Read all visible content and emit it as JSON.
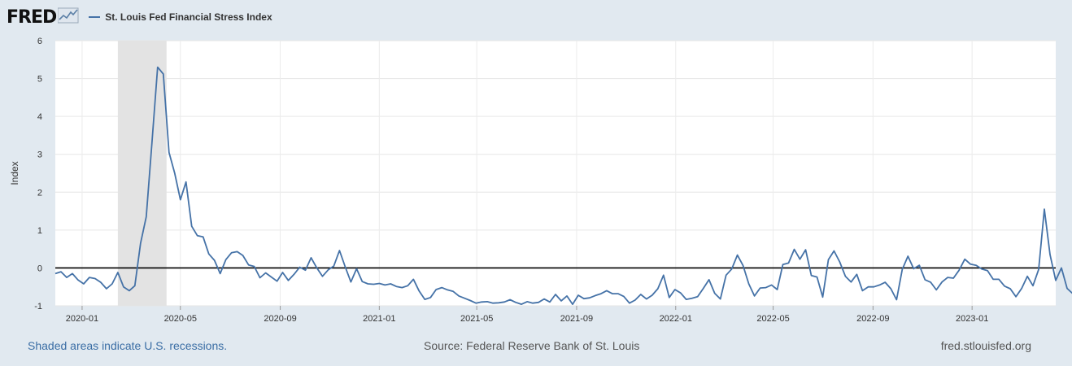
{
  "header": {
    "logo_text": "FRED",
    "logo_icon": "line-chart-icon",
    "legend_label": "St. Louis Fed Financial Stress Index"
  },
  "footer": {
    "recession_note": "Shaded areas indicate U.S. recessions.",
    "source": "Source: Federal Reserve Bank of St. Louis",
    "site": "fred.stlouisfed.org"
  },
  "colors": {
    "series": "#4572a7",
    "recession": "#e3e3e3",
    "background": "#e1e9f0",
    "plot": "#ffffff",
    "zero_line": "#000000"
  },
  "chart_data": {
    "type": "line",
    "title": "St. Louis Fed Financial Stress Index",
    "ylabel": "Index",
    "xlabel": "",
    "ylim": [
      -1,
      6
    ],
    "yticks": [
      -1,
      0,
      1,
      2,
      3,
      4,
      5,
      6
    ],
    "xlim": [
      "2019-11-29",
      "2023-04-14"
    ],
    "xticks": [
      "2020-01",
      "2020-05",
      "2020-09",
      "2021-01",
      "2021-05",
      "2021-09",
      "2022-01",
      "2022-05",
      "2022-09",
      "2023-01"
    ],
    "grid": true,
    "recessions": [
      {
        "start": "2020-02-14",
        "end": "2020-04-14"
      }
    ],
    "reference_line": 0,
    "series": [
      {
        "name": "St. Louis Fed Financial Stress Index",
        "start": "2019-11-29",
        "frequency": "weekly",
        "values": [
          -0.15,
          -0.1,
          -0.25,
          -0.15,
          -0.32,
          -0.42,
          -0.25,
          -0.28,
          -0.38,
          -0.55,
          -0.42,
          -0.12,
          -0.5,
          -0.6,
          -0.47,
          0.65,
          1.35,
          3.3,
          5.3,
          5.12,
          3.05,
          2.5,
          1.8,
          2.27,
          1.1,
          0.85,
          0.82,
          0.37,
          0.2,
          -0.15,
          0.22,
          0.4,
          0.43,
          0.33,
          0.08,
          0.04,
          -0.26,
          -0.13,
          -0.24,
          -0.35,
          -0.12,
          -0.33,
          -0.17,
          0.02,
          -0.06,
          0.27,
          0.0,
          -0.22,
          -0.05,
          0.05,
          0.46,
          0.03,
          -0.37,
          -0.02,
          -0.36,
          -0.42,
          -0.43,
          -0.41,
          -0.45,
          -0.42,
          -0.49,
          -0.52,
          -0.47,
          -0.3,
          -0.61,
          -0.83,
          -0.78,
          -0.57,
          -0.52,
          -0.58,
          -0.62,
          -0.74,
          -0.8,
          -0.86,
          -0.93,
          -0.9,
          -0.89,
          -0.93,
          -0.92,
          -0.9,
          -0.84,
          -0.91,
          -0.96,
          -0.89,
          -0.93,
          -0.91,
          -0.82,
          -0.9,
          -0.7,
          -0.87,
          -0.74,
          -0.96,
          -0.72,
          -0.81,
          -0.79,
          -0.73,
          -0.68,
          -0.6,
          -0.68,
          -0.68,
          -0.75,
          -0.93,
          -0.85,
          -0.7,
          -0.82,
          -0.72,
          -0.55,
          -0.19,
          -0.78,
          -0.57,
          -0.66,
          -0.83,
          -0.8,
          -0.76,
          -0.54,
          -0.31,
          -0.67,
          -0.82,
          -0.19,
          -0.03,
          0.34,
          0.06,
          -0.42,
          -0.74,
          -0.53,
          -0.52,
          -0.45,
          -0.57,
          0.09,
          0.13,
          0.49,
          0.23,
          0.48,
          -0.2,
          -0.24,
          -0.77,
          0.22,
          0.45,
          0.16,
          -0.22,
          -0.37,
          -0.17,
          -0.6,
          -0.5,
          -0.5,
          -0.45,
          -0.38,
          -0.55,
          -0.84,
          -0.04,
          0.31,
          -0.02,
          0.07,
          -0.31,
          -0.38,
          -0.58,
          -0.37,
          -0.25,
          -0.27,
          -0.06,
          0.23,
          0.1,
          0.07,
          -0.03,
          -0.07,
          -0.3,
          -0.3,
          -0.48,
          -0.55,
          -0.76,
          -0.54,
          -0.22,
          -0.47,
          -0.04,
          1.55,
          0.35,
          -0.33,
          0.0,
          -0.54,
          -0.68
        ]
      }
    ]
  }
}
